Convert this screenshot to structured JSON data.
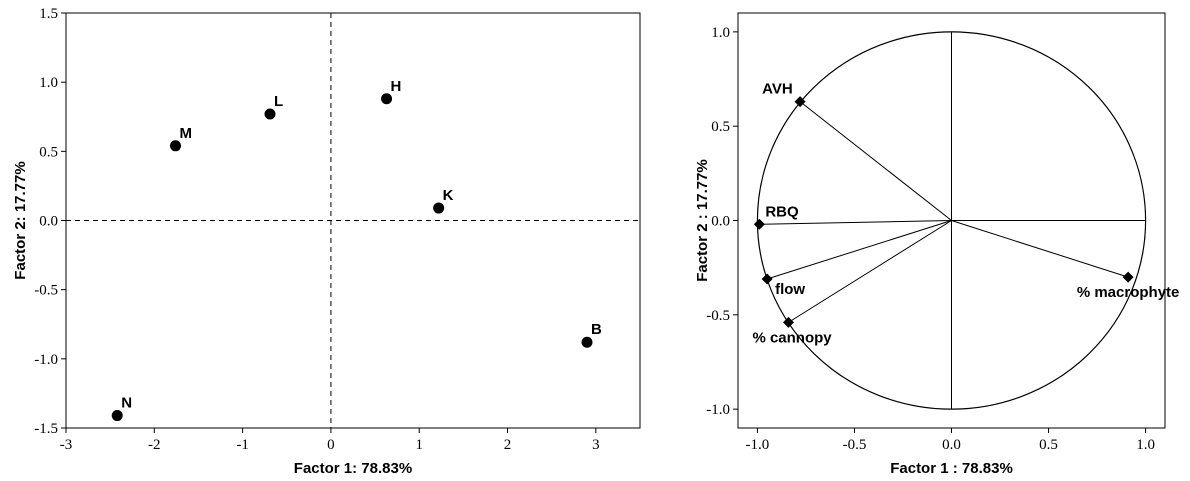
{
  "chart_data": [
    {
      "type": "scatter",
      "xlabel": "Factor 1: 78.83%",
      "ylabel": "Factor 2: 17.77%",
      "xlim": [
        -3,
        3.5
      ],
      "ylim": [
        -1.5,
        1.5
      ],
      "xticks": [
        "-3",
        "-2",
        "-1",
        "0",
        "1",
        "2",
        "3"
      ],
      "xtick_values": [
        -3,
        -2,
        -1,
        0,
        1,
        2,
        3
      ],
      "yticks": [
        "1.5",
        "1.0",
        "0.5",
        "0.0",
        "-0.5",
        "-1.0",
        "-1.5"
      ],
      "ytick_values": [
        1.5,
        1.0,
        0.5,
        0.0,
        -0.5,
        -1.0,
        -1.5
      ],
      "reference_lines": {
        "x": 0,
        "y": 0,
        "style": "dashed"
      },
      "points": [
        {
          "label": "H",
          "x": 0.63,
          "y": 0.88
        },
        {
          "label": "L",
          "x": -0.69,
          "y": 0.77
        },
        {
          "label": "M",
          "x": -1.76,
          "y": 0.54
        },
        {
          "label": "K",
          "x": 1.22,
          "y": 0.09
        },
        {
          "label": "B",
          "x": 2.9,
          "y": -0.88
        },
        {
          "label": "N",
          "x": -2.42,
          "y": -1.41
        }
      ]
    },
    {
      "type": "scatter",
      "subtype": "correlation-circle",
      "xlabel": "Factor 1 : 78.83%",
      "ylabel": "Factor 2 : 17.77%",
      "xlim": [
        -1.1,
        1.1
      ],
      "ylim": [
        -1.1,
        1.1
      ],
      "xticks": [
        "-1.0",
        "-0.5",
        "0.0",
        "0.5",
        "1.0"
      ],
      "xtick_values": [
        -1.0,
        -0.5,
        0.0,
        0.5,
        1.0
      ],
      "yticks": [
        "1.0",
        "0.5",
        "0.0",
        "-0.5",
        "-1.0"
      ],
      "ytick_values": [
        1.0,
        0.5,
        0.0,
        -0.5,
        -1.0
      ],
      "circle_radius": 1.0,
      "vectors": [
        {
          "label": "AVH",
          "x": -0.78,
          "y": 0.63
        },
        {
          "label": "RBQ",
          "x": -0.99,
          "y": -0.02
        },
        {
          "label": "flow",
          "x": -0.95,
          "y": -0.31
        },
        {
          "label": "% cannopy",
          "x": -0.84,
          "y": -0.54
        },
        {
          "label": "% macrophyte",
          "x": 0.91,
          "y": -0.3
        }
      ]
    }
  ]
}
